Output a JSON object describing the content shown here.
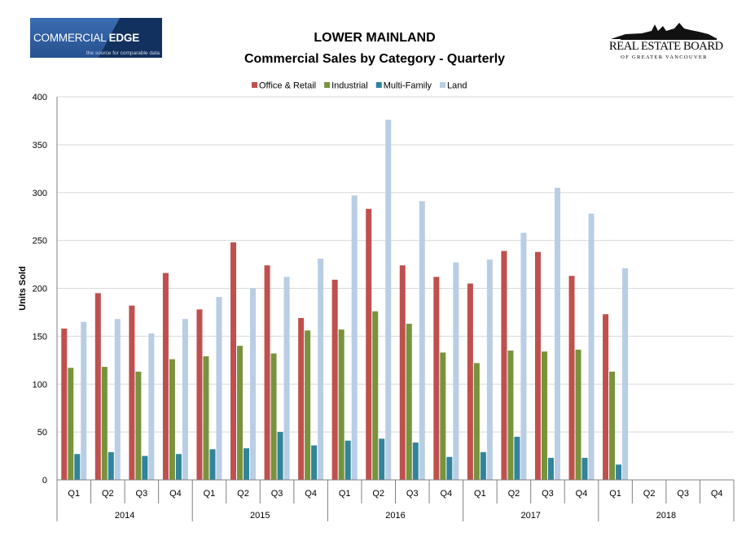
{
  "header": {
    "title_line1": "LOWER MAINLAND",
    "title_line2": "Commercial Sales by Category - Quarterly",
    "logo_left_brand_a": "COMMERCIAL ",
    "logo_left_brand_b": "EDGE",
    "logo_left_tagline": "the source for comparable data",
    "logo_right_name": "REAL ESTATE BOARD",
    "logo_right_sub": "OF GREATER VANCOUVER"
  },
  "colors": {
    "office_retail": "#c0504d",
    "industrial": "#77933c",
    "multi_family": "#31849b",
    "land": "#b9cde5",
    "gridline": "#d9d9d9",
    "axis": "#808080"
  },
  "chart_data": {
    "type": "bar",
    "ylabel": "Units Sold",
    "ylim": [
      0,
      400
    ],
    "yticks": [
      0,
      50,
      100,
      150,
      200,
      250,
      300,
      350,
      400
    ],
    "grid": true,
    "legend_position": "top",
    "categories": [
      "Q1 2014",
      "Q2 2014",
      "Q3 2014",
      "Q4 2014",
      "Q1 2015",
      "Q2 2015",
      "Q3 2015",
      "Q4 2015",
      "Q1 2016",
      "Q2 2016",
      "Q3 2016",
      "Q4 2016",
      "Q1 2017",
      "Q2 2017",
      "Q3 2017",
      "Q4 2017",
      "Q1 2018",
      "Q2 2018",
      "Q3 2018",
      "Q4 2018"
    ],
    "quarter_labels": [
      "Q1",
      "Q2",
      "Q3",
      "Q4",
      "Q1",
      "Q2",
      "Q3",
      "Q4",
      "Q1",
      "Q2",
      "Q3",
      "Q4",
      "Q1",
      "Q2",
      "Q3",
      "Q4",
      "Q1",
      "Q2",
      "Q3",
      "Q4"
    ],
    "years": [
      "2014",
      "2015",
      "2016",
      "2017",
      "2018"
    ],
    "series": [
      {
        "name": "Office & Retail",
        "color_key": "office_retail",
        "values": [
          158,
          195,
          182,
          216,
          178,
          248,
          224,
          169,
          209,
          283,
          224,
          212,
          205,
          239,
          238,
          213,
          173,
          null,
          null,
          null
        ]
      },
      {
        "name": "Industrial",
        "color_key": "industrial",
        "values": [
          117,
          118,
          113,
          126,
          129,
          140,
          132,
          156,
          157,
          176,
          163,
          133,
          122,
          135,
          134,
          136,
          113,
          null,
          null,
          null
        ]
      },
      {
        "name": "Multi-Family",
        "color_key": "multi_family",
        "values": [
          27,
          29,
          25,
          27,
          32,
          33,
          50,
          36,
          41,
          43,
          39,
          24,
          29,
          45,
          23,
          23,
          16,
          null,
          null,
          null
        ]
      },
      {
        "name": "Land",
        "color_key": "land",
        "values": [
          165,
          168,
          153,
          168,
          191,
          200,
          212,
          231,
          297,
          376,
          291,
          227,
          230,
          258,
          305,
          278,
          221,
          null,
          null,
          null
        ]
      }
    ]
  }
}
